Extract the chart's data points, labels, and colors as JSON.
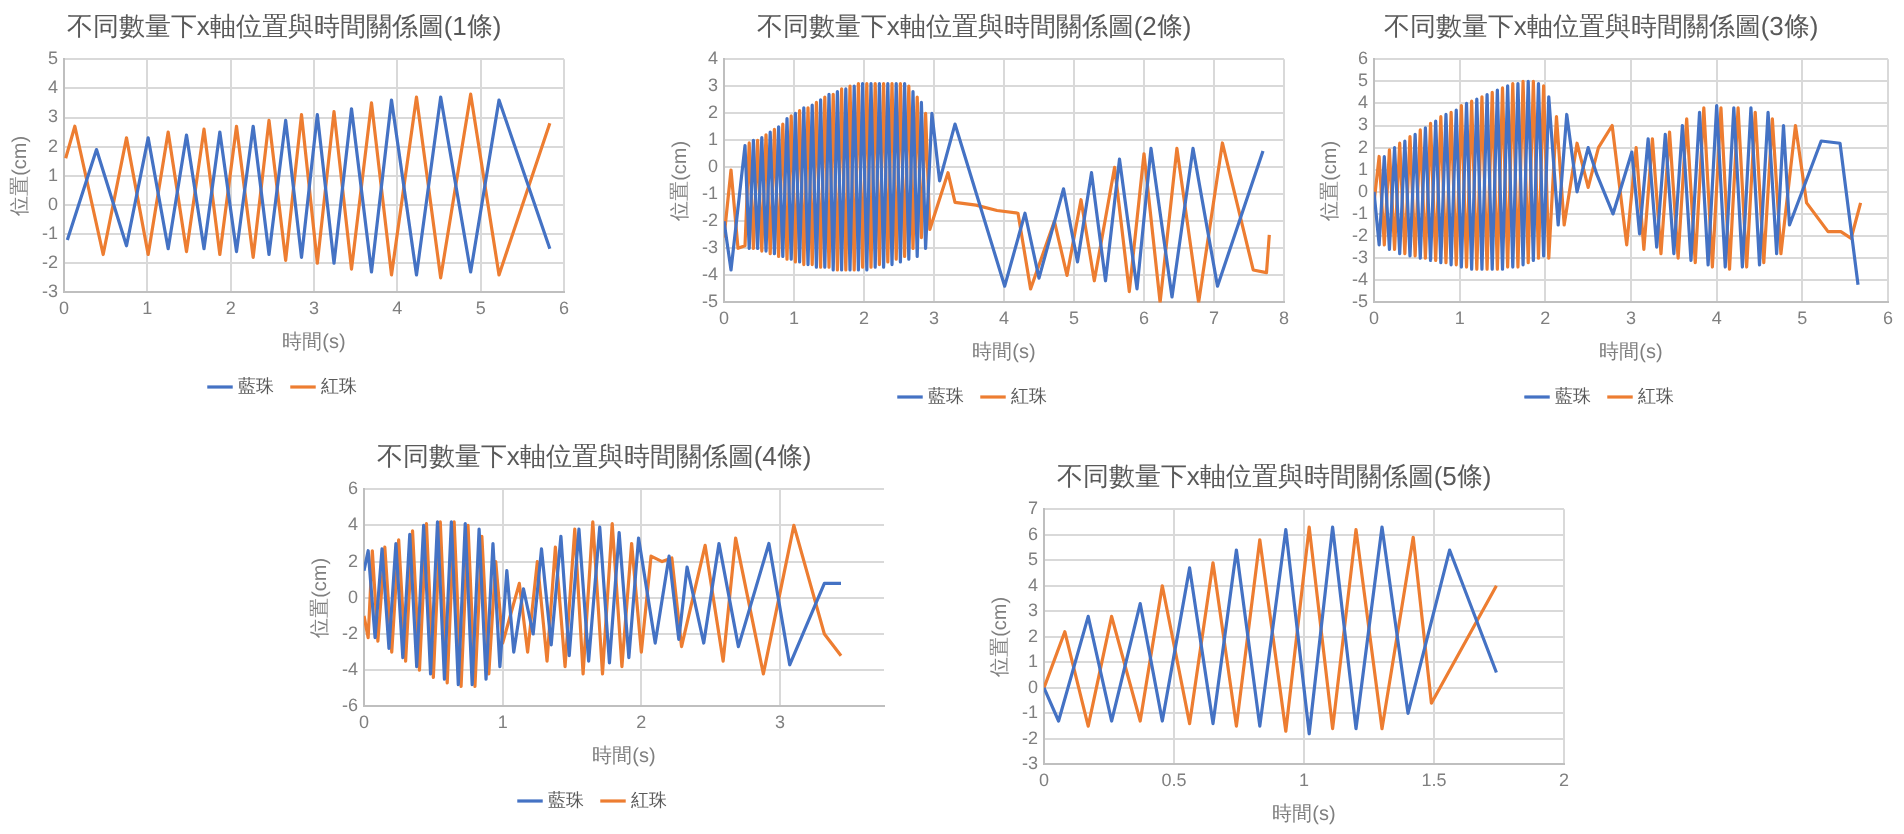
{
  "chart_data": [
    {
      "type": "line",
      "title": "不同數量下x軸位置與時間關係圖(1條)",
      "xlabel": "時間(s)",
      "ylabel": "位置(cm)",
      "xlim": [
        0,
        6
      ],
      "xticks": [
        0,
        1,
        2,
        3,
        4,
        5,
        6
      ],
      "ylim": [
        -3,
        5
      ],
      "yticks": [
        -3,
        -2,
        -1,
        0,
        1,
        2,
        3,
        4,
        5
      ],
      "grid": true,
      "legend": "bottom",
      "series": [
        {
          "name": "藍珠",
          "color": "#4472c4",
          "x": [
            0.04,
            0.39,
            0.75,
            1.01,
            1.25,
            1.47,
            1.68,
            1.87,
            2.07,
            2.27,
            2.46,
            2.66,
            2.85,
            3.04,
            3.24,
            3.45,
            3.69,
            3.93,
            4.23,
            4.52,
            4.88,
            5.22,
            5.83
          ],
          "values": [
            -1.2,
            1.9,
            -1.4,
            2.3,
            -1.5,
            2.4,
            -1.5,
            2.5,
            -1.6,
            2.7,
            -1.7,
            2.9,
            -1.8,
            3.1,
            -2.0,
            3.3,
            -2.3,
            3.6,
            -2.4,
            3.7,
            -2.3,
            3.6,
            -1.5
          ]
        },
        {
          "name": "紅珠",
          "color": "#ed7d31",
          "x": [
            0.02,
            0.13,
            0.47,
            0.75,
            1.01,
            1.25,
            1.47,
            1.68,
            1.87,
            2.07,
            2.27,
            2.46,
            2.66,
            2.85,
            3.04,
            3.24,
            3.45,
            3.69,
            3.93,
            4.23,
            4.52,
            4.88,
            5.22,
            5.83
          ],
          "values": [
            1.6,
            2.7,
            -1.7,
            2.3,
            -1.7,
            2.5,
            -1.6,
            2.6,
            -1.7,
            2.7,
            -1.8,
            2.9,
            -1.9,
            3.1,
            -2.0,
            3.2,
            -2.2,
            3.5,
            -2.4,
            3.7,
            -2.5,
            3.8,
            -2.4,
            2.8
          ]
        }
      ]
    },
    {
      "type": "line",
      "title": "不同數量下x軸位置與時間關係圖(2條)",
      "xlabel": "時間(s)",
      "ylabel": "位置(cm)",
      "xlim": [
        0,
        8
      ],
      "xticks": [
        0,
        1,
        2,
        3,
        4,
        5,
        6,
        7,
        8
      ],
      "ylim": [
        -5,
        4
      ],
      "yticks": [
        -5,
        -4,
        -3,
        -2,
        -1,
        0,
        1,
        2,
        3,
        4
      ],
      "grid": true,
      "legend": "bottom",
      "series": [
        {
          "name": "藍珠",
          "color": "#4472c4",
          "x": [
            0,
            0.1,
            0.3,
            0.36,
            0.42,
            0.48,
            0.54,
            0.6,
            0.66,
            0.72,
            0.78,
            0.84,
            0.9,
            0.96,
            1.02,
            1.08,
            1.14,
            1.2,
            1.26,
            1.32,
            1.38,
            1.44,
            1.5,
            1.56,
            1.62,
            1.68,
            1.74,
            1.8,
            1.86,
            1.92,
            1.98,
            2.04,
            2.1,
            2.16,
            2.22,
            2.28,
            2.34,
            2.4,
            2.46,
            2.52,
            2.58,
            2.64,
            2.7,
            2.76,
            2.82,
            2.88,
            2.97,
            3.08,
            3.3,
            4.01,
            4.3,
            4.5,
            4.85,
            5.05,
            5.25,
            5.45,
            5.65,
            5.9,
            6.1,
            6.4,
            6.7,
            7.05,
            7.7
          ],
          "values": [
            -2.0,
            -3.8,
            0.8,
            -3.0,
            1.0,
            -3.0,
            1.1,
            -3.1,
            1.3,
            -3.2,
            1.5,
            -3.3,
            1.8,
            -3.4,
            2.0,
            -3.5,
            2.2,
            -3.6,
            2.3,
            -3.7,
            2.5,
            -3.7,
            2.7,
            -3.8,
            2.8,
            -3.8,
            2.9,
            -3.8,
            3.0,
            -3.8,
            3.1,
            -3.8,
            3.1,
            -3.7,
            3.1,
            -3.7,
            3.1,
            -3.6,
            3.1,
            -3.5,
            3.1,
            -3.4,
            2.8,
            -3.3,
            2.4,
            -3.0,
            2.0,
            -0.5,
            1.6,
            -4.4,
            -1.7,
            -4.1,
            -0.8,
            -3.5,
            -0.2,
            -4.2,
            0.3,
            -4.5,
            0.7,
            -4.8,
            0.7,
            -4.4,
            0.6
          ]
        },
        {
          "name": "紅珠",
          "color": "#ed7d31",
          "x": [
            0,
            0.1,
            0.2,
            0.3,
            0.36,
            0.42,
            0.48,
            0.54,
            0.6,
            0.66,
            0.72,
            0.78,
            0.84,
            0.9,
            0.96,
            1.02,
            1.08,
            1.14,
            1.2,
            1.26,
            1.32,
            1.38,
            1.44,
            1.5,
            1.56,
            1.62,
            1.68,
            1.74,
            1.8,
            1.86,
            1.92,
            1.98,
            2.04,
            2.1,
            2.16,
            2.22,
            2.28,
            2.34,
            2.4,
            2.46,
            2.52,
            2.58,
            2.64,
            2.7,
            2.76,
            2.82,
            2.88,
            2.94,
            3.2,
            3.3,
            3.6,
            3.9,
            4.2,
            4.38,
            4.72,
            4.9,
            5.1,
            5.29,
            5.58,
            5.79,
            6.0,
            6.23,
            6.47,
            6.78,
            7.12,
            7.56,
            7.75,
            7.79
          ],
          "values": [
            -2.6,
            -0.1,
            -3.0,
            -2.9,
            0.9,
            -3.0,
            1.0,
            -3.1,
            1.2,
            -3.2,
            1.4,
            -3.3,
            1.6,
            -3.4,
            1.9,
            -3.5,
            2.1,
            -3.6,
            2.2,
            -3.6,
            2.4,
            -3.7,
            2.6,
            -3.7,
            2.7,
            -3.8,
            2.9,
            -3.8,
            3.0,
            -3.8,
            3.1,
            -3.7,
            3.1,
            -3.7,
            3.1,
            -3.6,
            3.1,
            -3.5,
            3.1,
            -3.4,
            3.1,
            -3.3,
            3.0,
            -3.0,
            2.6,
            -2.6,
            2.0,
            -2.3,
            -0.2,
            -1.3,
            -1.4,
            -1.6,
            -1.7,
            -4.5,
            -2.0,
            -4.0,
            -1.2,
            -4.2,
            0.0,
            -4.6,
            0.5,
            -5.0,
            0.7,
            -5.0,
            0.9,
            -3.8,
            -3.9,
            -2.5
          ]
        }
      ]
    },
    {
      "type": "line",
      "title": "不同數量下x軸位置與時間關係圖(3條)",
      "xlabel": "時間(s)",
      "ylabel": "位置(cm)",
      "xlim": [
        0,
        6
      ],
      "xticks": [
        0,
        1,
        2,
        3,
        4,
        5,
        6
      ],
      "ylim": [
        -5,
        6
      ],
      "yticks": [
        -5,
        -4,
        -3,
        -2,
        -1,
        0,
        1,
        2,
        3,
        4,
        5,
        6
      ],
      "grid": true,
      "legend": "bottom",
      "series": [
        {
          "name": "藍珠",
          "color": "#4472c4",
          "x": [
            0,
            0.06,
            0.12,
            0.18,
            0.24,
            0.3,
            0.36,
            0.42,
            0.48,
            0.54,
            0.6,
            0.66,
            0.72,
            0.78,
            0.84,
            0.9,
            0.96,
            1.02,
            1.08,
            1.14,
            1.2,
            1.26,
            1.32,
            1.38,
            1.44,
            1.5,
            1.56,
            1.62,
            1.68,
            1.74,
            1.8,
            1.86,
            1.92,
            1.98,
            2.04,
            2.15,
            2.25,
            2.37,
            2.5,
            2.6,
            2.79,
            3.01,
            3.1,
            3.2,
            3.3,
            3.4,
            3.5,
            3.6,
            3.7,
            3.8,
            3.9,
            4.0,
            4.1,
            4.2,
            4.3,
            4.4,
            4.5,
            4.6,
            4.7,
            4.78,
            4.85,
            5.22,
            5.44,
            5.65
          ],
          "values": [
            0,
            -2.4,
            1.6,
            -2.6,
            2.0,
            -2.8,
            2.3,
            -2.9,
            2.6,
            -3.0,
            2.9,
            -3.1,
            3.2,
            -3.2,
            3.5,
            -3.3,
            3.7,
            -3.4,
            4.0,
            -3.5,
            4.2,
            -3.5,
            4.4,
            -3.5,
            4.6,
            -3.5,
            4.8,
            -3.4,
            4.9,
            -3.3,
            5.0,
            -3.1,
            4.9,
            -2.9,
            4.3,
            -1.5,
            3.5,
            0.0,
            2.0,
            0.8,
            -1.0,
            1.8,
            -1.9,
            2.4,
            -2.5,
            2.6,
            -2.8,
            3.0,
            -3.1,
            3.6,
            -3.3,
            3.9,
            -3.4,
            3.8,
            -3.4,
            3.8,
            -3.3,
            3.6,
            -2.8,
            3.0,
            -1.5,
            2.3,
            2.2,
            -4.2
          ]
        },
        {
          "name": "紅珠",
          "color": "#ed7d31",
          "x": [
            0,
            0.06,
            0.12,
            0.18,
            0.24,
            0.3,
            0.36,
            0.42,
            0.48,
            0.54,
            0.6,
            0.66,
            0.72,
            0.78,
            0.84,
            0.9,
            0.96,
            1.02,
            1.08,
            1.14,
            1.2,
            1.26,
            1.32,
            1.38,
            1.44,
            1.5,
            1.56,
            1.62,
            1.68,
            1.74,
            1.8,
            1.86,
            1.92,
            1.98,
            2.04,
            2.13,
            2.22,
            2.37,
            2.5,
            2.62,
            2.78,
            2.95,
            3.06,
            3.15,
            3.25,
            3.35,
            3.45,
            3.55,
            3.65,
            3.75,
            3.85,
            3.95,
            4.05,
            4.15,
            4.25,
            4.35,
            4.45,
            4.55,
            4.65,
            4.75,
            4.92,
            5.05,
            5.3,
            5.45,
            5.57,
            5.68
          ],
          "values": [
            -0.5,
            1.6,
            -2.4,
            1.9,
            -2.6,
            2.2,
            -2.8,
            2.5,
            -2.9,
            2.8,
            -3.0,
            3.1,
            -3.1,
            3.4,
            -3.2,
            3.6,
            -3.3,
            3.9,
            -3.4,
            4.1,
            -3.5,
            4.3,
            -3.5,
            4.5,
            -3.5,
            4.7,
            -3.4,
            4.9,
            -3.4,
            5.0,
            -3.2,
            5.0,
            -3.0,
            4.8,
            -3.0,
            3.4,
            -1.5,
            2.2,
            0.2,
            2.0,
            3.0,
            -2.4,
            2.0,
            -2.6,
            2.4,
            -2.8,
            2.7,
            -3.0,
            3.3,
            -3.2,
            3.8,
            -3.4,
            3.8,
            -3.5,
            3.8,
            -3.4,
            3.6,
            -3.2,
            3.3,
            -2.8,
            3.0,
            -0.5,
            -1.8,
            -1.8,
            -2.1,
            -0.5
          ]
        }
      ]
    },
    {
      "type": "line",
      "title": "不同數量下x軸位置與時間關係圖(4條)",
      "xlabel": "時間(s)",
      "ylabel": "位置(cm)",
      "xlim": [
        0,
        3.75
      ],
      "xticks": [
        0,
        1,
        2,
        3
      ],
      "ylim": [
        -6,
        6
      ],
      "yticks": [
        -6,
        -4,
        -2,
        0,
        2,
        4,
        6
      ],
      "grid": true,
      "legend": "bottom",
      "series": [
        {
          "name": "藍珠",
          "color": "#4472c4",
          "x": [
            0,
            0.03,
            0.08,
            0.13,
            0.18,
            0.23,
            0.28,
            0.33,
            0.38,
            0.43,
            0.48,
            0.53,
            0.58,
            0.63,
            0.68,
            0.73,
            0.78,
            0.83,
            0.88,
            0.93,
            0.98,
            1.03,
            1.08,
            1.15,
            1.22,
            1.28,
            1.35,
            1.42,
            1.48,
            1.55,
            1.62,
            1.7,
            1.77,
            1.84,
            1.91,
            1.98,
            2.1,
            2.2,
            2.27,
            2.33,
            2.45,
            2.56,
            2.7,
            2.92,
            3.07,
            3.32,
            3.44
          ],
          "values": [
            1.5,
            2.6,
            -2.2,
            2.7,
            -2.8,
            3.0,
            -3.3,
            3.5,
            -3.8,
            4.0,
            -4.2,
            4.2,
            -4.5,
            4.2,
            -4.8,
            4.1,
            -4.8,
            3.8,
            -4.5,
            3.0,
            -3.8,
            1.5,
            -3.0,
            0.5,
            -2.0,
            2.7,
            -2.6,
            3.4,
            -3.2,
            3.8,
            -3.5,
            3.9,
            -3.6,
            3.6,
            -3.3,
            3.3,
            -2.5,
            2.3,
            -2.3,
            1.7,
            -2.5,
            3.0,
            -2.7,
            3.0,
            -3.7,
            0.8,
            0.8
          ]
        },
        {
          "name": "紅珠",
          "color": "#ed7d31",
          "x": [
            0,
            0.03,
            0.06,
            0.1,
            0.15,
            0.2,
            0.25,
            0.3,
            0.35,
            0.4,
            0.45,
            0.5,
            0.55,
            0.6,
            0.65,
            0.7,
            0.75,
            0.8,
            0.85,
            0.9,
            0.95,
            1.0,
            1.12,
            1.18,
            1.25,
            1.32,
            1.38,
            1.45,
            1.52,
            1.58,
            1.65,
            1.72,
            1.79,
            1.86,
            1.93,
            2.0,
            2.07,
            2.15,
            2.22,
            2.29,
            2.46,
            2.59,
            2.68,
            2.88,
            3.1,
            3.32,
            3.44
          ],
          "values": [
            -1.0,
            -2.2,
            2.6,
            -2.4,
            2.8,
            -3.0,
            3.2,
            -3.5,
            3.7,
            -4.0,
            4.1,
            -4.4,
            4.2,
            -4.7,
            4.2,
            -4.9,
            4.0,
            -4.9,
            3.4,
            -4.2,
            2.0,
            -2.5,
            0.8,
            -3.0,
            2.0,
            -3.5,
            2.8,
            -3.8,
            3.8,
            -4.2,
            4.2,
            -4.2,
            4.1,
            -3.8,
            3.0,
            -3.0,
            2.3,
            2.0,
            2.2,
            -2.7,
            2.9,
            -3.5,
            3.3,
            -4.2,
            4.0,
            -2.0,
            -3.2
          ]
        }
      ]
    },
    {
      "type": "line",
      "title": "不同數量下x軸位置與時間關係圖(5條)",
      "xlabel": "時間(s)",
      "ylabel": "位置(cm)",
      "xlim": [
        0,
        2
      ],
      "xticks": [
        0,
        0.5,
        1,
        1.5,
        2
      ],
      "ylim": [
        -3,
        7
      ],
      "yticks": [
        -3,
        -2,
        -1,
        0,
        1,
        2,
        3,
        4,
        5,
        6,
        7
      ],
      "grid": true,
      "series": [
        {
          "color": "#4472c4",
          "x": [
            0,
            0.056,
            0.17,
            0.26,
            0.37,
            0.455,
            0.56,
            0.65,
            0.74,
            0.83,
            0.93,
            1.02,
            1.11,
            1.2,
            1.3,
            1.4,
            1.56,
            1.74
          ],
          "values": [
            0,
            -1.3,
            2.8,
            -1.3,
            3.3,
            -1.3,
            4.7,
            -1.4,
            5.4,
            -1.5,
            6.2,
            -1.8,
            6.3,
            -1.6,
            6.3,
            -1.0,
            5.4,
            0.6
          ]
        },
        {
          "color": "#ed7d31",
          "x": [
            0,
            0.08,
            0.17,
            0.26,
            0.37,
            0.455,
            0.56,
            0.65,
            0.74,
            0.83,
            0.93,
            1.02,
            1.11,
            1.2,
            1.3,
            1.42,
            1.49,
            1.74
          ],
          "values": [
            0,
            2.2,
            -1.5,
            2.8,
            -1.3,
            4.0,
            -1.4,
            4.9,
            -1.5,
            5.8,
            -1.7,
            6.3,
            -1.6,
            6.2,
            -1.6,
            5.9,
            -0.6,
            4.0
          ]
        }
      ]
    }
  ]
}
